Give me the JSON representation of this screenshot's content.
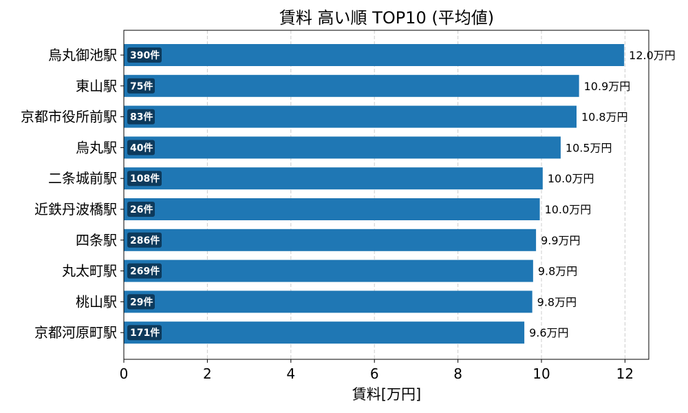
{
  "chart_data": {
    "type": "bar",
    "orientation": "horizontal",
    "title": "賃料 高い順 TOP10 (平均値)",
    "xlabel": "賃料[万円]",
    "ylabel": "",
    "xlim": [
      0,
      12.57
    ],
    "xticks": [
      0,
      2,
      4,
      6,
      8,
      10,
      12
    ],
    "grid": "x-dashed",
    "bar_color": "#1f77b4",
    "badge_color": "#0d3a5c",
    "categories": [
      "烏丸御池駅",
      "東山駅",
      "京都市役所前駅",
      "烏丸駅",
      "二条城前駅",
      "近鉄丹波橋駅",
      "四条駅",
      "丸太町駅",
      "桃山駅",
      "京都河原町駅"
    ],
    "values": [
      11.98,
      10.9,
      10.84,
      10.46,
      10.03,
      9.96,
      9.87,
      9.8,
      9.78,
      9.59
    ],
    "value_labels": [
      "12.0万円",
      "10.9万円",
      "10.8万円",
      "10.5万円",
      "10.0万円",
      "10.0万円",
      "9.9万円",
      "9.8万円",
      "9.8万円",
      "9.6万円"
    ],
    "counts": [
      "390件",
      "75件",
      "83件",
      "40件",
      "108件",
      "26件",
      "286件",
      "269件",
      "29件",
      "171件"
    ]
  }
}
